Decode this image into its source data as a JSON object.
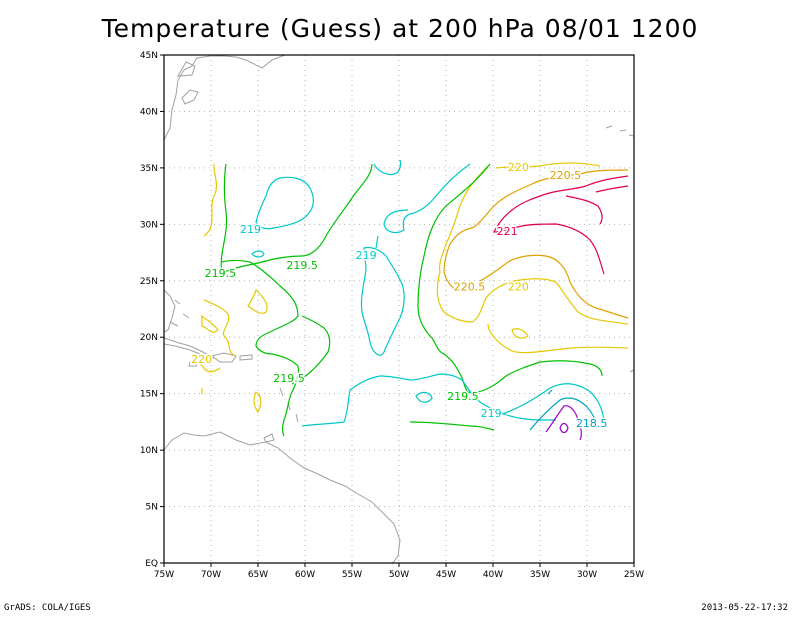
{
  "title": "Temperature (Guess) at 200 hPa 08/01 1200",
  "footer": {
    "left": "GrADS: COLA/IGES",
    "right": "2013-05-22-17:32"
  },
  "axes": {
    "lon_range": [
      -75,
      -25
    ],
    "lat_range": [
      0,
      45
    ],
    "x_ticks": [
      {
        "value": -75,
        "label": "75W"
      },
      {
        "value": -70,
        "label": "70W"
      },
      {
        "value": -65,
        "label": "65W"
      },
      {
        "value": -60,
        "label": "60W"
      },
      {
        "value": -55,
        "label": "55W"
      },
      {
        "value": -50,
        "label": "50W"
      },
      {
        "value": -45,
        "label": "45W"
      },
      {
        "value": -40,
        "label": "40W"
      },
      {
        "value": -35,
        "label": "35W"
      },
      {
        "value": -30,
        "label": "30W"
      },
      {
        "value": -25,
        "label": "25W"
      }
    ],
    "y_ticks": [
      {
        "value": 0,
        "label": "EQ"
      },
      {
        "value": 5,
        "label": "5N"
      },
      {
        "value": 10,
        "label": "10N"
      },
      {
        "value": 15,
        "label": "15N"
      },
      {
        "value": 20,
        "label": "20N"
      },
      {
        "value": 25,
        "label": "25N"
      },
      {
        "value": 30,
        "label": "30N"
      },
      {
        "value": 35,
        "label": "35N"
      },
      {
        "value": 40,
        "label": "40N"
      },
      {
        "value": 45,
        "label": "45N"
      }
    ],
    "grid": true
  },
  "colors": {
    "c218_5": "#00a0c8",
    "c219": "#00c8c8",
    "c219_5": "#00c000",
    "c220": "#e6c800",
    "c220_5": "#e0a000",
    "c221": "#e00050",
    "c_low": "#a000c8",
    "coast": "#a0a0a0"
  },
  "contour_labels": [
    {
      "text": "219",
      "lon": -65.8,
      "lat": 29.5,
      "color": "c219"
    },
    {
      "text": "219.5",
      "lon": -69,
      "lat": 25.6,
      "color": "c219_5"
    },
    {
      "text": "219.5",
      "lon": -60.3,
      "lat": 26.3,
      "color": "c219_5"
    },
    {
      "text": "219",
      "lon": -53.5,
      "lat": 27.2,
      "color": "c219"
    },
    {
      "text": "220",
      "lon": -37.3,
      "lat": 35,
      "color": "c220"
    },
    {
      "text": "220.5",
      "lon": -32.3,
      "lat": 34.3,
      "color": "c220_5"
    },
    {
      "text": "221",
      "lon": -38.5,
      "lat": 29.3,
      "color": "c221"
    },
    {
      "text": "220.5",
      "lon": -42.5,
      "lat": 24.4,
      "color": "c220_5"
    },
    {
      "text": "220",
      "lon": -37.3,
      "lat": 24.4,
      "color": "c220"
    },
    {
      "text": "220",
      "lon": -71,
      "lat": 18,
      "color": "c220"
    },
    {
      "text": "219.5",
      "lon": -61.7,
      "lat": 16.3,
      "color": "c219_5"
    },
    {
      "text": "219.5",
      "lon": -43.2,
      "lat": 14.7,
      "color": "c219_5"
    },
    {
      "text": "219",
      "lon": -40.2,
      "lat": 13.2,
      "color": "c219"
    },
    {
      "text": "218.5",
      "lon": -29.5,
      "lat": 12.3,
      "color": "c218_5"
    }
  ]
}
